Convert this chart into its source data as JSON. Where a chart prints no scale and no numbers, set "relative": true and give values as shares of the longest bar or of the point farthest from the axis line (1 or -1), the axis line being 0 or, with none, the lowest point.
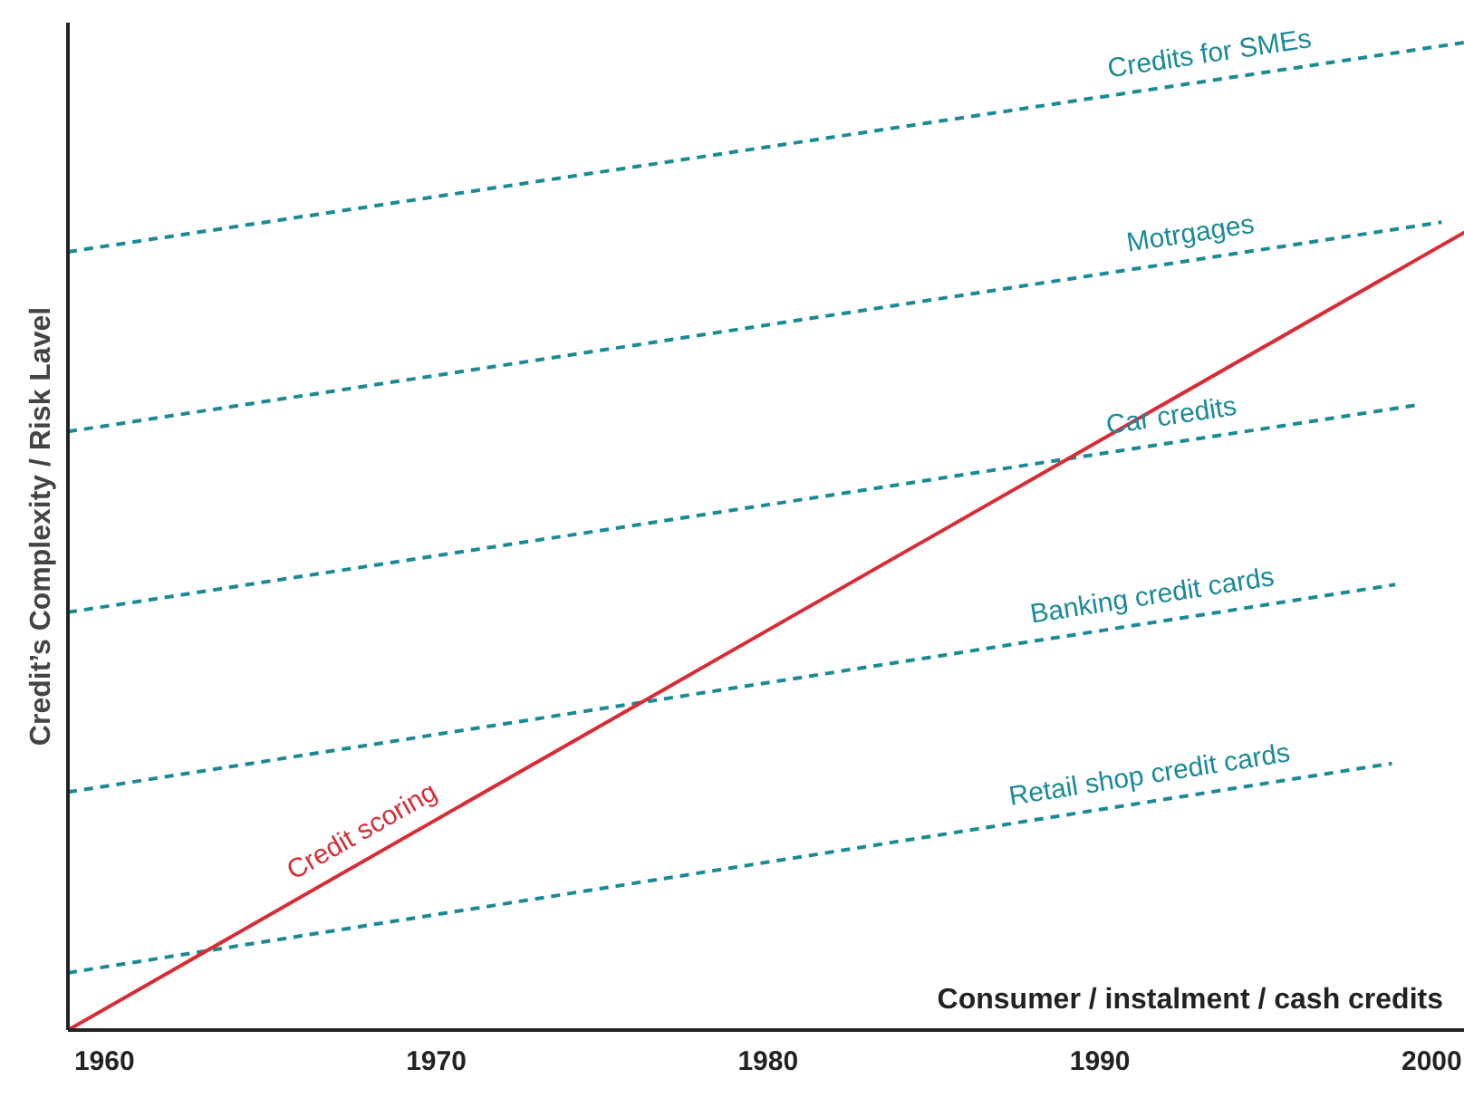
{
  "chart_data": {
    "type": "line",
    "relative": true,
    "xlabel": "Consumer / instalment / cash credits",
    "ylabel": "Credit’s Complexity / Risk Lavel",
    "xlim": [
      1958.9,
      2001
    ],
    "xticks": [
      1960,
      1970,
      1980,
      1990,
      2000
    ],
    "grid": false,
    "marker": "none",
    "series": [
      {
        "name": "Credits for SMEs",
        "color": "#1a8a96",
        "line_style": "dashed",
        "x": [
          1958.9,
          2001
        ],
        "values": [
          0.788,
          1.0
        ]
      },
      {
        "name": "Motrgages",
        "color": "#1a8a96",
        "line_style": "dashed",
        "x": [
          1958.9,
          2000.3
        ],
        "values": [
          0.606,
          0.818
        ]
      },
      {
        "name": "Car credits",
        "color": "#1a8a96",
        "line_style": "dashed",
        "x": [
          1958.9,
          1999.6
        ],
        "values": [
          0.423,
          0.633
        ]
      },
      {
        "name": "Banking credit cards",
        "color": "#1a8a96",
        "line_style": "dashed",
        "x": [
          1958.9,
          1998.9
        ],
        "values": [
          0.241,
          0.451
        ]
      },
      {
        "name": "Retail shop credit cards",
        "color": "#1a8a96",
        "line_style": "dashed",
        "x": [
          1958.9,
          1998.8
        ],
        "values": [
          0.058,
          0.27
        ]
      },
      {
        "name": "Credit scoring",
        "color": "#d62c35",
        "line_style": "solid",
        "x": [
          1958.9,
          2001
        ],
        "values": [
          0.0,
          0.808
        ]
      }
    ]
  }
}
